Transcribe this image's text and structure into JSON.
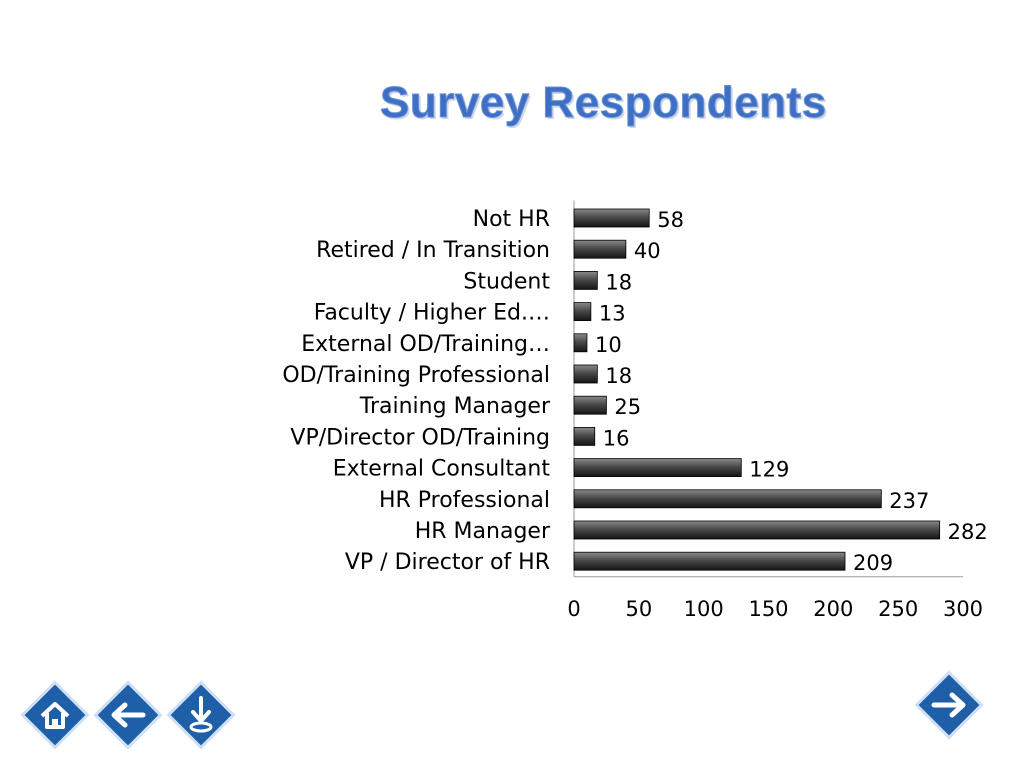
{
  "slide": {
    "title": "Survey Respondents"
  },
  "colors": {
    "bar_top": "#6a6a6a",
    "bar_bottom": "#1a1a1a",
    "bar_stroke": "#000000",
    "title": "#3e6fc4",
    "nav_button": "#1f5fa8"
  },
  "nav": {
    "home": "home-icon",
    "back": "arrow-left-icon",
    "download": "download-icon",
    "next": "arrow-right-icon"
  },
  "chart_data": {
    "type": "bar",
    "orientation": "horizontal",
    "categories": [
      "Not HR",
      "Retired / In Transition",
      "Student",
      "Faculty / Higher Ed.…",
      "External OD/Training…",
      "OD/Training Professional",
      "Training Manager",
      "VP/Director OD/Training",
      "External Consultant",
      "HR Professional",
      "HR Manager",
      "VP / Director of HR"
    ],
    "values": [
      58,
      40,
      18,
      13,
      10,
      18,
      25,
      16,
      129,
      237,
      282,
      209
    ],
    "xlim": [
      0,
      300
    ],
    "xticks": [
      0,
      50,
      100,
      150,
      200,
      250,
      300
    ],
    "data_labels": true,
    "grid": false,
    "legend": "none"
  }
}
